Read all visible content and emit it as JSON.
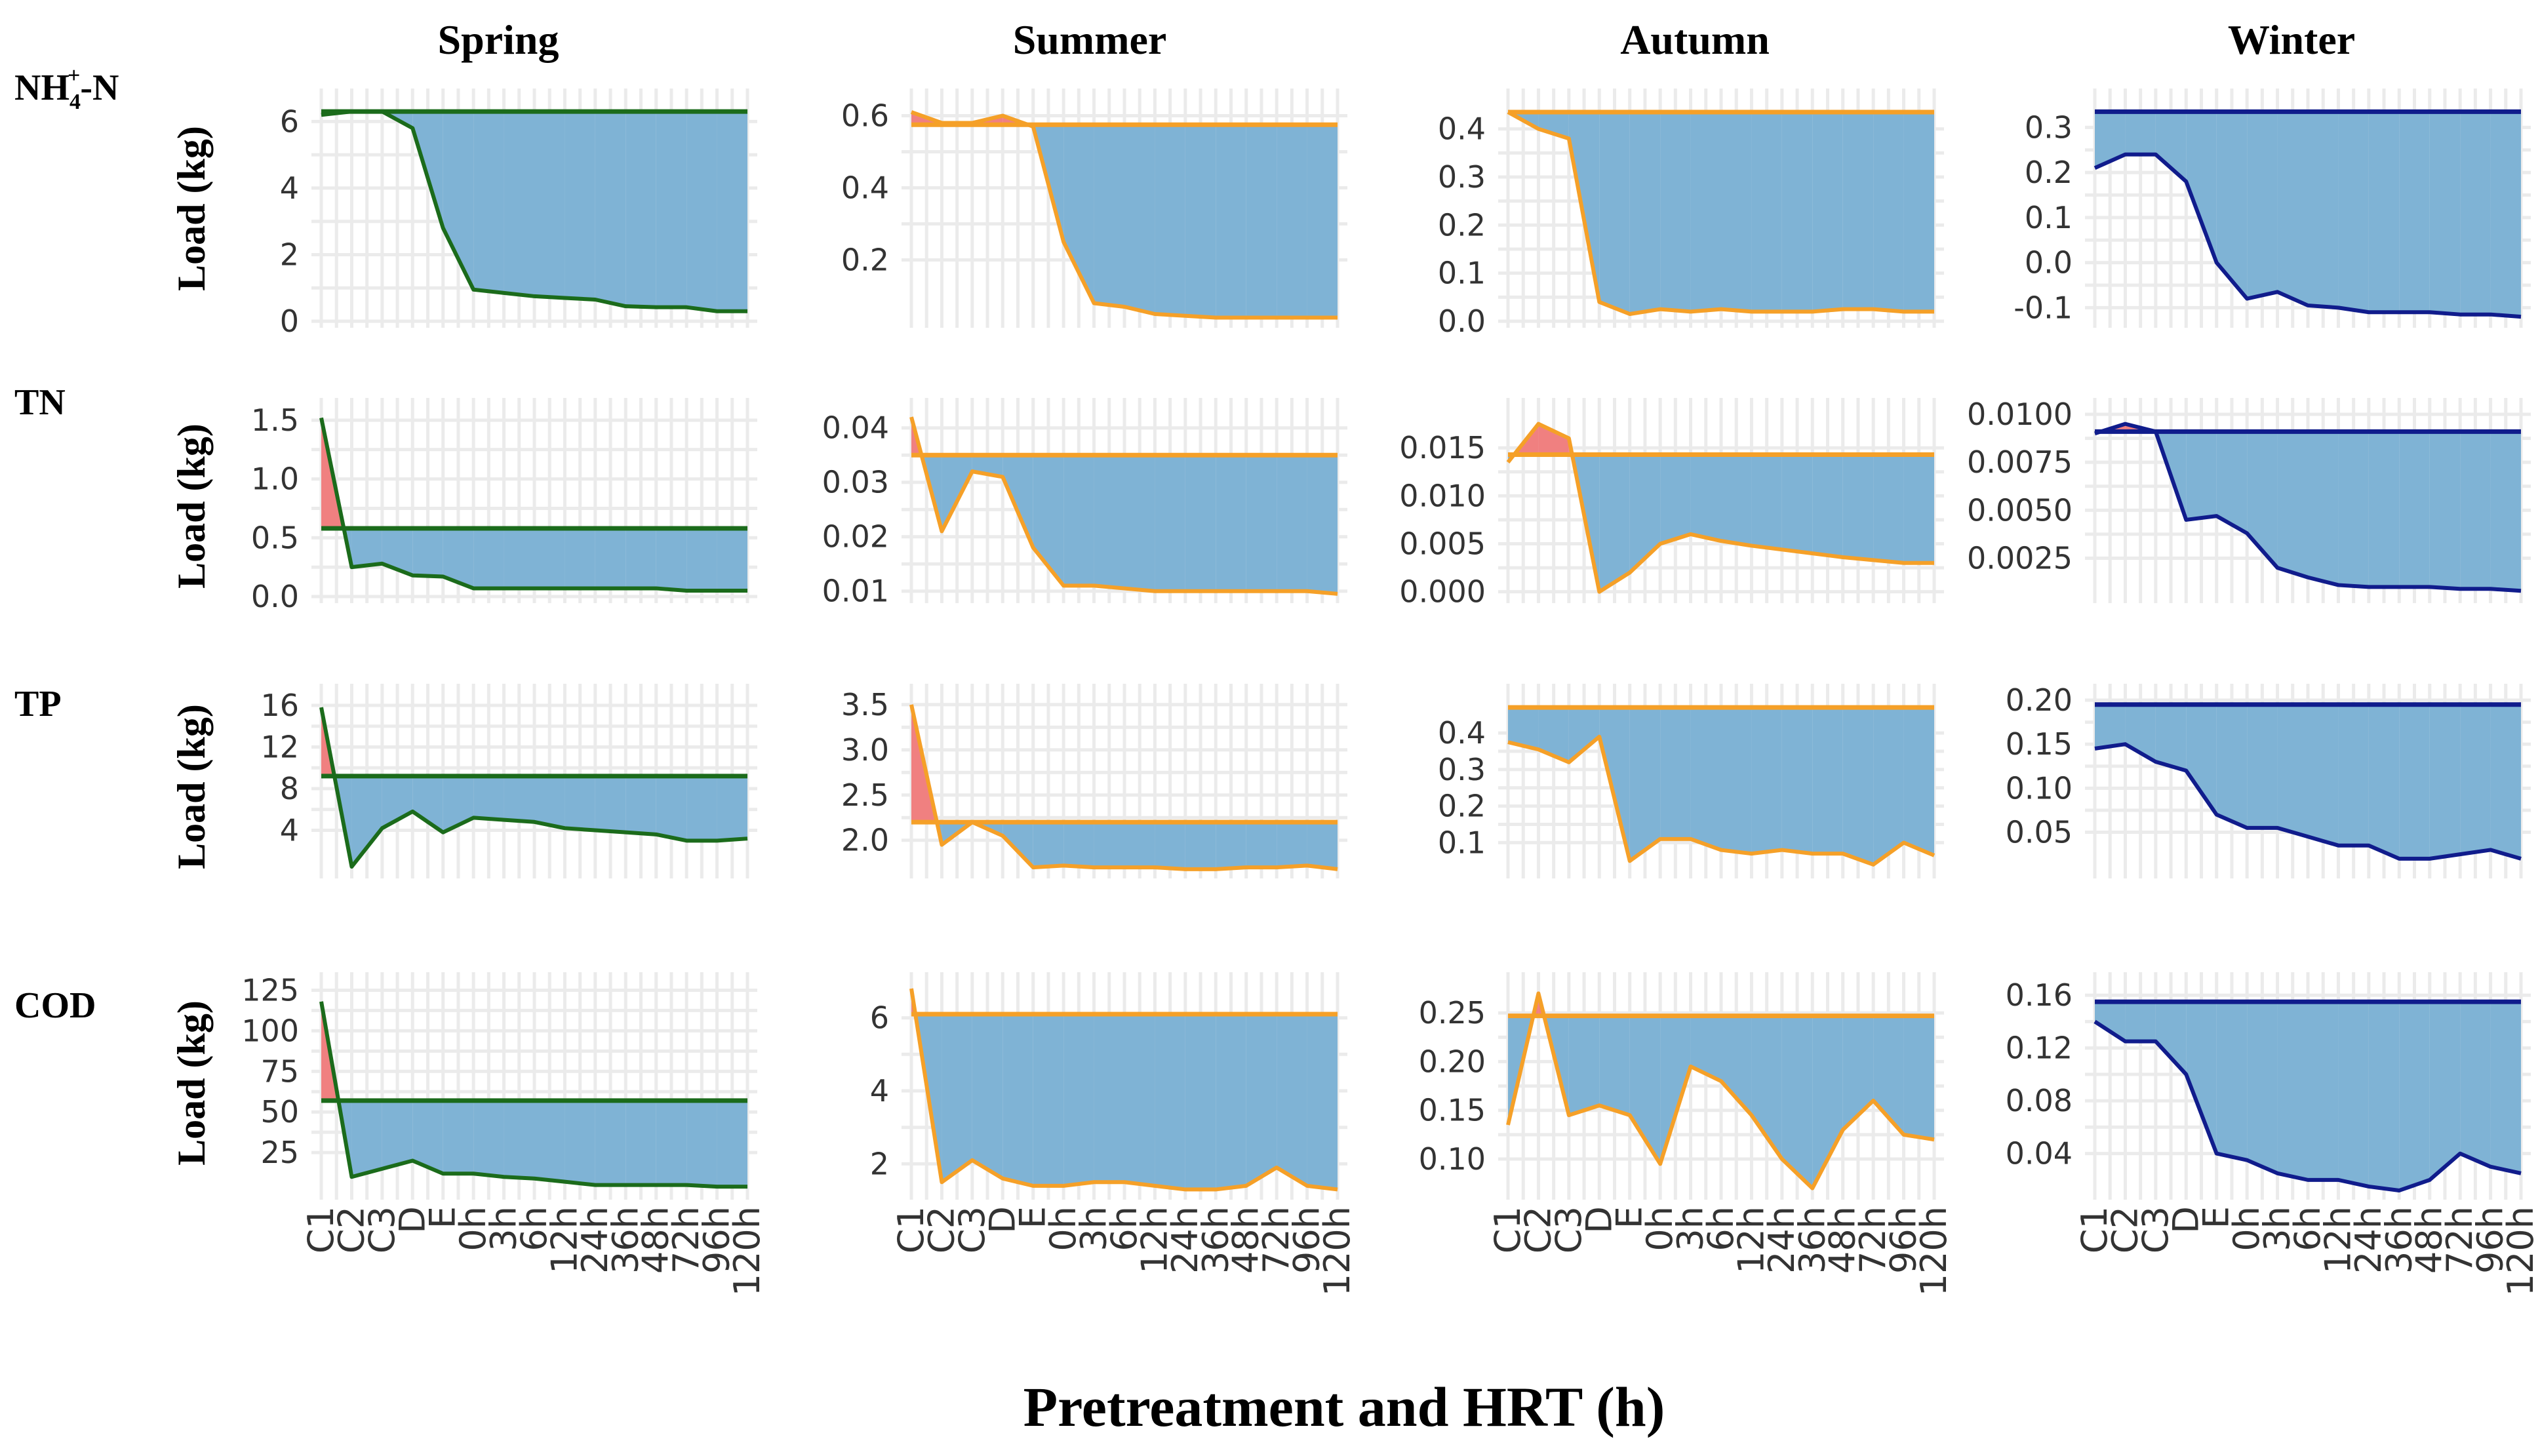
{
  "chart_data": {
    "type": "area",
    "x_label": "Pretreatment and HRT (h)",
    "y_label": "Load (kg)",
    "categories": [
      "C1",
      "C2",
      "C3",
      "D",
      "E",
      "0h",
      "3h",
      "6h",
      "12h",
      "24h",
      "36h",
      "48h",
      "72h",
      "96h",
      "120h"
    ],
    "seasons": [
      {
        "name": "Spring",
        "color": "#1b6b1b"
      },
      {
        "name": "Summer",
        "color": "#f5a028"
      },
      {
        "name": "Autumn",
        "color": "#f5a028"
      },
      {
        "name": "Winter",
        "color": "#101c8c"
      }
    ],
    "rows": [
      {
        "name": "NH",
        "sub": "4",
        "sup": "+",
        "suffix": "-N"
      },
      {
        "name": "TN"
      },
      {
        "name": "TP"
      },
      {
        "name": "COD"
      }
    ],
    "colors": {
      "reduction_fill": "#7fb3d5",
      "increase_fill": "#f08080"
    },
    "panels": [
      {
        "row": 0,
        "col": 0,
        "ylim": [
          0,
          6.5
        ],
        "yticks": [
          0,
          2,
          4,
          6
        ],
        "ytick_labels": [
          "0",
          "2",
          "4",
          "6"
        ],
        "baseline": 6.3,
        "values": [
          6.2,
          6.3,
          6.3,
          5.8,
          2.8,
          0.95,
          0.85,
          0.75,
          0.7,
          0.65,
          0.45,
          0.42,
          0.42,
          0.3,
          0.3
        ]
      },
      {
        "row": 0,
        "col": 1,
        "ylim": [
          0.03,
          0.63
        ],
        "yticks": [
          0.2,
          0.4,
          0.6
        ],
        "ytick_labels": [
          "0.2",
          "0.4",
          "0.6"
        ],
        "baseline": 0.575,
        "values": [
          0.61,
          0.58,
          0.58,
          0.6,
          0.57,
          0.25,
          0.08,
          0.07,
          0.05,
          0.045,
          0.04,
          0.04,
          0.04,
          0.04,
          0.04
        ]
      },
      {
        "row": 0,
        "col": 2,
        "ylim": [
          0,
          0.45
        ],
        "yticks": [
          0,
          0.1,
          0.2,
          0.3,
          0.4
        ],
        "ytick_labels": [
          "0.0",
          "0.1",
          "0.2",
          "0.3",
          "0.4"
        ],
        "baseline": 0.435,
        "values": [
          0.435,
          0.4,
          0.38,
          0.04,
          0.015,
          0.025,
          0.02,
          0.025,
          0.02,
          0.02,
          0.02,
          0.025,
          0.025,
          0.02,
          0.02
        ]
      },
      {
        "row": 0,
        "col": 3,
        "ylim": [
          -0.13,
          0.35
        ],
        "yticks": [
          -0.1,
          0,
          0.1,
          0.2,
          0.3
        ],
        "ytick_labels": [
          "-0.1",
          "0.0",
          "0.1",
          "0.2",
          "0.3"
        ],
        "baseline": 0.335,
        "values": [
          0.21,
          0.24,
          0.24,
          0.18,
          0.0,
          -0.08,
          -0.065,
          -0.095,
          -0.1,
          -0.11,
          -0.11,
          -0.11,
          -0.115,
          -0.115,
          -0.12
        ]
      },
      {
        "row": 1,
        "col": 0,
        "ylim": [
          0,
          1.55
        ],
        "yticks": [
          0,
          0.5,
          1,
          1.5
        ],
        "ytick_labels": [
          "0.0",
          "0.5",
          "1.0",
          "1.5"
        ],
        "baseline": 0.58,
        "values": [
          1.52,
          0.25,
          0.28,
          0.18,
          0.17,
          0.07,
          0.07,
          0.07,
          0.07,
          0.07,
          0.07,
          0.07,
          0.05,
          0.05,
          0.05
        ]
      },
      {
        "row": 1,
        "col": 1,
        "ylim": [
          0.009,
          0.0425
        ],
        "yticks": [
          0.01,
          0.02,
          0.03,
          0.04
        ],
        "ytick_labels": [
          "0.01",
          "0.02",
          "0.03",
          "0.04"
        ],
        "baseline": 0.035,
        "values": [
          0.042,
          0.021,
          0.032,
          0.031,
          0.018,
          0.011,
          0.011,
          0.0105,
          0.01,
          0.01,
          0.01,
          0.01,
          0.01,
          0.01,
          0.0095
        ]
      },
      {
        "row": 1,
        "col": 2,
        "ylim": [
          -0.0005,
          0.0185
        ],
        "yticks": [
          0,
          0.005,
          0.01,
          0.015
        ],
        "ytick_labels": [
          "0.000",
          "0.005",
          "0.010",
          "0.015"
        ],
        "baseline": 0.0143,
        "values": [
          0.0135,
          0.0175,
          0.016,
          0.0,
          0.002,
          0.005,
          0.006,
          0.0053,
          0.0048,
          0.0044,
          0.004,
          0.0036,
          0.0033,
          0.003,
          0.003
        ]
      },
      {
        "row": 1,
        "col": 3,
        "ylim": [
          0.0005,
          0.01
        ],
        "yticks": [
          0.0025,
          0.005,
          0.0075,
          0.01
        ],
        "ytick_labels": [
          "0.0025",
          "0.0050",
          "0.0075",
          "0.0100"
        ],
        "baseline": 0.0091,
        "values": [
          0.009,
          0.0095,
          0.0091,
          0.0045,
          0.0047,
          0.0038,
          0.002,
          0.0015,
          0.0011,
          0.001,
          0.001,
          0.001,
          0.0009,
          0.0009,
          0.0008
        ]
      },
      {
        "row": 2,
        "col": 0,
        "ylim": [
          0,
          16.5
        ],
        "yticks": [
          4,
          8,
          12,
          16
        ],
        "ytick_labels": [
          "4",
          "8",
          "12",
          "16"
        ],
        "baseline": 9.2,
        "values": [
          15.8,
          0.5,
          4.2,
          5.8,
          3.8,
          5.2,
          5.0,
          4.8,
          4.2,
          4.0,
          3.8,
          3.6,
          3.0,
          3.0,
          3.2
        ]
      },
      {
        "row": 2,
        "col": 1,
        "ylim": [
          1.65,
          3.55
        ],
        "yticks": [
          2,
          2.5,
          3,
          3.5
        ],
        "ytick_labels": [
          "2.0",
          "2.5",
          "3.0",
          "3.5"
        ],
        "baseline": 2.2,
        "values": [
          3.5,
          1.95,
          2.2,
          2.05,
          1.7,
          1.72,
          1.7,
          1.7,
          1.7,
          1.68,
          1.68,
          1.7,
          1.7,
          1.72,
          1.68
        ]
      },
      {
        "row": 2,
        "col": 2,
        "ylim": [
          0.02,
          0.49
        ],
        "yticks": [
          0.1,
          0.2,
          0.3,
          0.4
        ],
        "ytick_labels": [
          "0.1",
          "0.2",
          "0.3",
          "0.4"
        ],
        "baseline": 0.47,
        "values": [
          0.375,
          0.355,
          0.32,
          0.39,
          0.05,
          0.11,
          0.11,
          0.08,
          0.07,
          0.08,
          0.07,
          0.07,
          0.04,
          0.1,
          0.065
        ]
      },
      {
        "row": 2,
        "col": 3,
        "ylim": [
          0.005,
          0.2
        ],
        "yticks": [
          0.05,
          0.1,
          0.15,
          0.2
        ],
        "ytick_labels": [
          "0.05",
          "0.10",
          "0.15",
          "0.20"
        ],
        "baseline": 0.195,
        "values": [
          0.145,
          0.15,
          0.13,
          0.12,
          0.07,
          0.055,
          0.055,
          0.045,
          0.035,
          0.035,
          0.02,
          0.02,
          0.025,
          0.03,
          0.02
        ]
      },
      {
        "row": 3,
        "col": 0,
        "ylim": [
          0,
          126
        ],
        "yticks": [
          25,
          50,
          75,
          100,
          125
        ],
        "ytick_labels": [
          "25",
          "50",
          "75",
          "100",
          "125"
        ],
        "baseline": 57,
        "values": [
          118,
          10,
          15,
          20,
          12,
          12,
          10,
          9,
          7,
          5,
          5,
          5,
          5,
          4,
          4
        ]
      },
      {
        "row": 3,
        "col": 1,
        "ylim": [
          1.2,
          6.8
        ],
        "yticks": [
          2,
          4,
          6
        ],
        "ytick_labels": [
          "2",
          "4",
          "6"
        ],
        "baseline": 6.1,
        "values": [
          6.8,
          1.5,
          2.1,
          1.6,
          1.4,
          1.4,
          1.5,
          1.5,
          1.4,
          1.3,
          1.3,
          1.4,
          1.9,
          1.4,
          1.3
        ]
      },
      {
        "row": 3,
        "col": 2,
        "ylim": [
          0.065,
          0.275
        ],
        "yticks": [
          0.1,
          0.15,
          0.2,
          0.25
        ],
        "ytick_labels": [
          "0.10",
          "0.15",
          "0.20",
          "0.25"
        ],
        "baseline": 0.247,
        "values": [
          0.135,
          0.27,
          0.145,
          0.155,
          0.145,
          0.095,
          0.195,
          0.18,
          0.145,
          0.1,
          0.07,
          0.13,
          0.16,
          0.125,
          0.12
        ]
      },
      {
        "row": 3,
        "col": 3,
        "ylim": [
          0.01,
          0.165
        ],
        "yticks": [
          0.04,
          0.08,
          0.12,
          0.16
        ],
        "ytick_labels": [
          "0.04",
          "0.08",
          "0.12",
          "0.16"
        ],
        "baseline": 0.155,
        "values": [
          0.14,
          0.125,
          0.125,
          0.1,
          0.04,
          0.035,
          0.025,
          0.02,
          0.02,
          0.015,
          0.012,
          0.02,
          0.04,
          0.03,
          0.025
        ]
      }
    ]
  }
}
